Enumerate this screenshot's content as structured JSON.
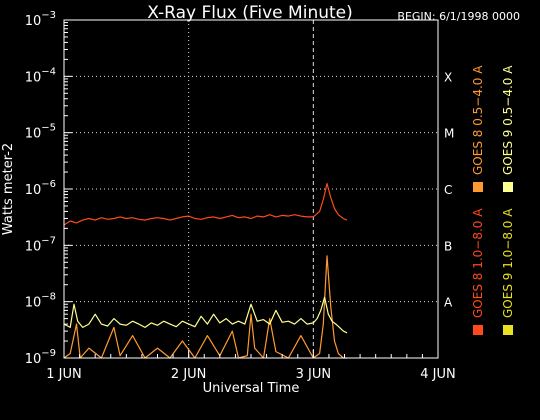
{
  "chart_data": {
    "type": "line",
    "title": "X-Ray Flux (Five Minute)",
    "begin_label": "BEGIN: 6/1/1998 0000",
    "ylabel": "Watts meter-2",
    "xlabel": "Universal Time",
    "y_scale": "log",
    "ylim": [
      1e-09,
      0.001
    ],
    "xlim": [
      0,
      3
    ],
    "x_ticks": [
      {
        "value": 0,
        "label": "1 JUN"
      },
      {
        "value": 1,
        "label": "2 JUN"
      },
      {
        "value": 2,
        "label": "3 JUN"
      },
      {
        "value": 3,
        "label": "4 JUN"
      }
    ],
    "y_ticks": [
      {
        "exp": -3,
        "base": "10",
        "sup": "−3"
      },
      {
        "exp": -4,
        "base": "10",
        "sup": "−4"
      },
      {
        "exp": -5,
        "base": "10",
        "sup": "−5"
      },
      {
        "exp": -6,
        "base": "10",
        "sup": "−6"
      },
      {
        "exp": -7,
        "base": "10",
        "sup": "−7"
      },
      {
        "exp": -8,
        "base": "10",
        "sup": "−8"
      },
      {
        "exp": -9,
        "base": "10",
        "sup": "−9"
      }
    ],
    "flare_classes": [
      {
        "label": "X",
        "exp": -4.0
      },
      {
        "label": "M",
        "exp": -5.0
      },
      {
        "label": "C",
        "exp": -6.0
      },
      {
        "label": "B",
        "exp": -7.0
      },
      {
        "label": "A",
        "exp": -8.0
      }
    ],
    "grid": "dotted at class thresholds and day boundaries",
    "legend_position": "right, vertical",
    "legend": [
      {
        "label": "GOES 8 1.0−8.0 A",
        "color": "#ff4a1a"
      },
      {
        "label": "GOES 8 0.5−4.0 A",
        "color": "#ff9a30"
      },
      {
        "label": "GOES 9 1.0−8.0 A",
        "color": "#e8e020"
      },
      {
        "label": "GOES 9 0.5−4.0 A",
        "color": "#ffff90"
      }
    ],
    "series": [
      {
        "name": "GOES 8 1.0−8.0 A",
        "color": "#ff4a1a",
        "points": [
          [
            0.0,
            2.3e-07
          ],
          [
            0.05,
            2.7e-07
          ],
          [
            0.1,
            2.5e-07
          ],
          [
            0.15,
            2.8e-07
          ],
          [
            0.2,
            3e-07
          ],
          [
            0.25,
            2.8e-07
          ],
          [
            0.3,
            3.1e-07
          ],
          [
            0.35,
            2.9e-07
          ],
          [
            0.4,
            3e-07
          ],
          [
            0.45,
            3.2e-07
          ],
          [
            0.5,
            3e-07
          ],
          [
            0.55,
            3.1e-07
          ],
          [
            0.6,
            2.9e-07
          ],
          [
            0.65,
            2.8e-07
          ],
          [
            0.7,
            3e-07
          ],
          [
            0.75,
            3.1e-07
          ],
          [
            0.8,
            3e-07
          ],
          [
            0.85,
            2.8e-07
          ],
          [
            0.9,
            3e-07
          ],
          [
            0.95,
            3.2e-07
          ],
          [
            1.0,
            3.3e-07
          ],
          [
            1.05,
            3e-07
          ],
          [
            1.1,
            2.9e-07
          ],
          [
            1.15,
            3.1e-07
          ],
          [
            1.2,
            3.2e-07
          ],
          [
            1.25,
            3e-07
          ],
          [
            1.3,
            3.2e-07
          ],
          [
            1.35,
            3.4e-07
          ],
          [
            1.4,
            3.1e-07
          ],
          [
            1.45,
            3.2e-07
          ],
          [
            1.5,
            3e-07
          ],
          [
            1.55,
            3.3e-07
          ],
          [
            1.6,
            3.2e-07
          ],
          [
            1.65,
            3.5e-07
          ],
          [
            1.7,
            3.2e-07
          ],
          [
            1.75,
            3.4e-07
          ],
          [
            1.8,
            3.3e-07
          ],
          [
            1.85,
            3.5e-07
          ],
          [
            1.9,
            3.3e-07
          ],
          [
            1.95,
            3.2e-07
          ],
          [
            2.0,
            3.2e-07
          ],
          [
            2.05,
            4e-07
          ],
          [
            2.08,
            6.5e-07
          ],
          [
            2.11,
            1.25e-06
          ],
          [
            2.14,
            7e-07
          ],
          [
            2.17,
            4.5e-07
          ],
          [
            2.2,
            3.5e-07
          ],
          [
            2.24,
            3e-07
          ],
          [
            2.27,
            2.8e-07
          ]
        ]
      },
      {
        "name": "GOES 8 0.5−4.0 A",
        "color": "#ff9a30",
        "points": [
          [
            0.0,
            1e-09
          ],
          [
            0.05,
            1.2e-09
          ],
          [
            0.1,
            4e-09
          ],
          [
            0.13,
            1e-09
          ],
          [
            0.2,
            1.5e-09
          ],
          [
            0.3,
            1e-09
          ],
          [
            0.4,
            3.5e-09
          ],
          [
            0.45,
            1.1e-09
          ],
          [
            0.55,
            2.5e-09
          ],
          [
            0.65,
            1e-09
          ],
          [
            0.75,
            1.5e-09
          ],
          [
            0.85,
            1e-09
          ],
          [
            0.95,
            2e-09
          ],
          [
            1.05,
            1e-09
          ],
          [
            1.15,
            2.5e-09
          ],
          [
            1.25,
            1.1e-09
          ],
          [
            1.35,
            3e-09
          ],
          [
            1.4,
            1e-09
          ],
          [
            1.47,
            1.1e-09
          ],
          [
            1.5,
            6e-09
          ],
          [
            1.53,
            1.5e-09
          ],
          [
            1.6,
            1e-09
          ],
          [
            1.65,
            5e-09
          ],
          [
            1.7,
            1.3e-09
          ],
          [
            1.8,
            1e-09
          ],
          [
            1.9,
            2.5e-09
          ],
          [
            2.0,
            1e-09
          ],
          [
            2.05,
            1.2e-09
          ],
          [
            2.08,
            4e-09
          ],
          [
            2.11,
            6.5e-08
          ],
          [
            2.14,
            8e-09
          ],
          [
            2.17,
            2e-09
          ],
          [
            2.2,
            1.2e-09
          ],
          [
            2.24,
            1e-09
          ],
          [
            2.27,
            1e-09
          ]
        ]
      },
      {
        "name": "GOES 9 1.0−8.0 A",
        "color": "#e8e020",
        "points": []
      },
      {
        "name": "GOES 9 0.5−4.0 A",
        "color": "#ffff90",
        "points": [
          [
            0.0,
            4e-09
          ],
          [
            0.05,
            3.5e-09
          ],
          [
            0.08,
            9e-09
          ],
          [
            0.11,
            4.5e-09
          ],
          [
            0.15,
            3.5e-09
          ],
          [
            0.2,
            4e-09
          ],
          [
            0.25,
            6e-09
          ],
          [
            0.3,
            4e-09
          ],
          [
            0.35,
            3.7e-09
          ],
          [
            0.4,
            5e-09
          ],
          [
            0.45,
            4e-09
          ],
          [
            0.5,
            3.8e-09
          ],
          [
            0.55,
            4.5e-09
          ],
          [
            0.6,
            4e-09
          ],
          [
            0.65,
            3.5e-09
          ],
          [
            0.7,
            4.2e-09
          ],
          [
            0.75,
            3.8e-09
          ],
          [
            0.8,
            4.5e-09
          ],
          [
            0.85,
            4e-09
          ],
          [
            0.9,
            3.6e-09
          ],
          [
            0.95,
            4.5e-09
          ],
          [
            1.0,
            4e-09
          ],
          [
            1.05,
            3.6e-09
          ],
          [
            1.1,
            5.5e-09
          ],
          [
            1.15,
            4e-09
          ],
          [
            1.2,
            6e-09
          ],
          [
            1.25,
            4.2e-09
          ],
          [
            1.3,
            5e-09
          ],
          [
            1.35,
            4e-09
          ],
          [
            1.4,
            4.5e-09
          ],
          [
            1.45,
            4e-09
          ],
          [
            1.5,
            9e-09
          ],
          [
            1.55,
            4.5e-09
          ],
          [
            1.6,
            4.8e-09
          ],
          [
            1.65,
            4e-09
          ],
          [
            1.7,
            7e-09
          ],
          [
            1.75,
            4.3e-09
          ],
          [
            1.8,
            4.5e-09
          ],
          [
            1.85,
            4e-09
          ],
          [
            1.9,
            5e-09
          ],
          [
            1.95,
            4e-09
          ],
          [
            2.0,
            4.2e-09
          ],
          [
            2.03,
            5e-09
          ],
          [
            2.06,
            7e-09
          ],
          [
            2.09,
            1.2e-08
          ],
          [
            2.12,
            6e-09
          ],
          [
            2.15,
            4.5e-09
          ],
          [
            2.18,
            4e-09
          ],
          [
            2.21,
            3.5e-09
          ],
          [
            2.24,
            3e-09
          ],
          [
            2.27,
            2.8e-09
          ]
        ]
      }
    ]
  }
}
